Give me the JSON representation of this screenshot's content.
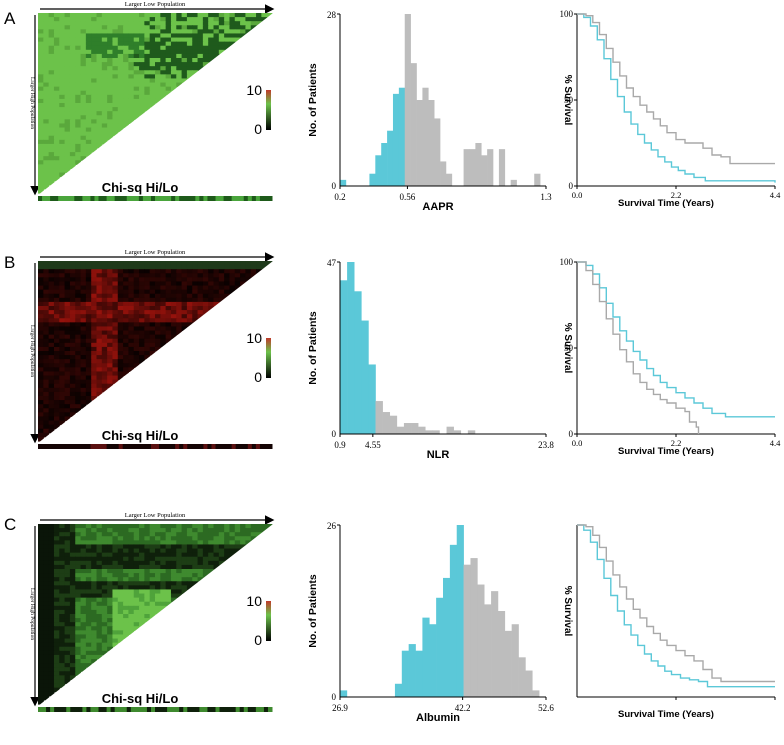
{
  "colors": {
    "cyan": "#5bc8d8",
    "gray": "#bdbdbd",
    "green": "#6cc24a",
    "black": "#000000"
  },
  "chart_data": [
    {
      "panel": "A",
      "heatmap": {
        "type": "heatmap",
        "top_label": "Larger Low Population",
        "side_label": "Larger High Population",
        "title": "Chi-sq Hi/Lo",
        "legend_max": "10",
        "legend_min": "0",
        "scheme": "green"
      },
      "histogram": {
        "type": "bar",
        "ylabel": "No. of Patients",
        "xlabel": "AAPR",
        "y_top_label": "28",
        "y_bottom_label": "0",
        "ylim": [
          0,
          28
        ],
        "xlim": [
          0.2,
          1.3
        ],
        "x_tick_labels": [
          "0.2",
          "0.56",
          "1.3"
        ],
        "x_tick_values": [
          0.2,
          0.56,
          1.3
        ],
        "cutoff": 0.56,
        "values": [
          1,
          0,
          0,
          0,
          0,
          2,
          5,
          7,
          9,
          15,
          16,
          28,
          20,
          14,
          16,
          14,
          11,
          4,
          2,
          0,
          0,
          6,
          6,
          7,
          5,
          6,
          0,
          6,
          0,
          1,
          0,
          0,
          0,
          2,
          0
        ]
      },
      "survival": {
        "type": "line",
        "ylabel": "% Survival",
        "xlabel": "Survival Time (Years)",
        "y_tick_labels": [
          "100",
          "50",
          "0"
        ],
        "x_tick_labels": [
          "0.0",
          "2.2",
          "4.4"
        ],
        "xlim": [
          0,
          4.4
        ],
        "ylim": [
          0,
          100
        ],
        "series": [
          {
            "name": "low",
            "color": "cyan",
            "points": [
              [
                0,
                100
              ],
              [
                0.15,
                98
              ],
              [
                0.3,
                93
              ],
              [
                0.45,
                85
              ],
              [
                0.6,
                74
              ],
              [
                0.75,
                62
              ],
              [
                0.9,
                52
              ],
              [
                1.05,
                43
              ],
              [
                1.2,
                36
              ],
              [
                1.35,
                30
              ],
              [
                1.5,
                25
              ],
              [
                1.65,
                21
              ],
              [
                1.8,
                17
              ],
              [
                1.95,
                14
              ],
              [
                2.1,
                11
              ],
              [
                2.25,
                9
              ],
              [
                2.4,
                7
              ],
              [
                2.6,
                5
              ],
              [
                2.85,
                3
              ],
              [
                3.3,
                3
              ],
              [
                4.4,
                2
              ]
            ]
          },
          {
            "name": "high",
            "color": "gray",
            "points": [
              [
                0,
                100
              ],
              [
                0.2,
                99
              ],
              [
                0.35,
                95
              ],
              [
                0.5,
                88
              ],
              [
                0.65,
                80
              ],
              [
                0.8,
                72
              ],
              [
                0.95,
                64
              ],
              [
                1.1,
                57
              ],
              [
                1.25,
                52
              ],
              [
                1.4,
                47
              ],
              [
                1.55,
                43
              ],
              [
                1.7,
                39
              ],
              [
                1.85,
                35
              ],
              [
                2.0,
                31
              ],
              [
                2.2,
                27
              ],
              [
                2.4,
                25
              ],
              [
                2.6,
                25
              ],
              [
                2.8,
                22
              ],
              [
                3.0,
                18
              ],
              [
                3.2,
                17
              ],
              [
                3.4,
                13
              ],
              [
                3.7,
                13
              ],
              [
                4.4,
                13
              ]
            ]
          }
        ]
      }
    },
    {
      "panel": "B",
      "heatmap": {
        "type": "heatmap",
        "top_label": "Larger Low Population",
        "side_label": "Larger High Population",
        "title": "Chi-sq Hi/Lo",
        "legend_max": "10",
        "legend_min": "0",
        "scheme": "dark"
      },
      "histogram": {
        "type": "bar",
        "ylabel": "No. of Patients",
        "xlabel": "NLR",
        "y_top_label": "47",
        "y_bottom_label": "0",
        "ylim": [
          0,
          47
        ],
        "xlim": [
          0.9,
          23.8
        ],
        "x_tick_labels": [
          "0.9",
          "4.55",
          "23.8"
        ],
        "x_tick_values": [
          0.9,
          4.55,
          23.8
        ],
        "cutoff": 4.55,
        "values": [
          42,
          47,
          39,
          31,
          19,
          9,
          6,
          5,
          2,
          3,
          3,
          2,
          1,
          1,
          0,
          2,
          1,
          0,
          1,
          0,
          0,
          0,
          0,
          0,
          0,
          0,
          0,
          0,
          0
        ]
      },
      "survival": {
        "type": "line",
        "ylabel": "% Survival",
        "xlabel": "Survival Time (Years)",
        "y_tick_labels": [
          "100",
          "50",
          "0"
        ],
        "x_tick_labels": [
          "0.0",
          "2.2",
          "4.4"
        ],
        "xlim": [
          0,
          4.4
        ],
        "ylim": [
          0,
          100
        ],
        "series": [
          {
            "name": "low",
            "color": "cyan",
            "points": [
              [
                0,
                100
              ],
              [
                0.2,
                98
              ],
              [
                0.35,
                93
              ],
              [
                0.5,
                85
              ],
              [
                0.65,
                76
              ],
              [
                0.8,
                68
              ],
              [
                0.95,
                60
              ],
              [
                1.1,
                54
              ],
              [
                1.25,
                48
              ],
              [
                1.4,
                43
              ],
              [
                1.55,
                38
              ],
              [
                1.7,
                34
              ],
              [
                1.85,
                30
              ],
              [
                2.0,
                27
              ],
              [
                2.2,
                24
              ],
              [
                2.4,
                21
              ],
              [
                2.6,
                18
              ],
              [
                2.8,
                15
              ],
              [
                3.0,
                12
              ],
              [
                3.3,
                10
              ],
              [
                4.4,
                10
              ]
            ]
          },
          {
            "name": "high",
            "color": "gray",
            "points": [
              [
                0,
                100
              ],
              [
                0.2,
                95
              ],
              [
                0.35,
                87
              ],
              [
                0.5,
                77
              ],
              [
                0.65,
                67
              ],
              [
                0.8,
                58
              ],
              [
                0.95,
                49
              ],
              [
                1.1,
                42
              ],
              [
                1.25,
                35
              ],
              [
                1.4,
                30
              ],
              [
                1.55,
                26
              ],
              [
                1.7,
                23
              ],
              [
                1.85,
                20
              ],
              [
                2.0,
                18
              ],
              [
                2.2,
                15
              ],
              [
                2.4,
                13
              ],
              [
                2.5,
                7
              ],
              [
                2.65,
                4
              ],
              [
                2.7,
                0
              ]
            ]
          }
        ]
      }
    },
    {
      "panel": "C",
      "heatmap": {
        "type": "heatmap",
        "top_label": "Larger Low Population",
        "side_label": "Larger High Population",
        "title": "Chi-sq Hi/Lo",
        "legend_max": "10",
        "legend_min": "0",
        "scheme": "green-dark"
      },
      "histogram": {
        "type": "bar",
        "ylabel": "No. of Patients",
        "xlabel": "Albumin",
        "y_top_label": "26",
        "y_bottom_label": "0",
        "ylim": [
          0,
          26
        ],
        "xlim": [
          26.9,
          52.6
        ],
        "x_tick_labels": [
          "26.9",
          "42.2",
          "52.6"
        ],
        "x_tick_values": [
          26.9,
          42.2,
          52.6
        ],
        "cutoff": 42.2,
        "values": [
          1,
          0,
          0,
          0,
          0,
          0,
          0,
          0,
          2,
          7,
          8,
          7,
          12,
          11,
          15,
          18,
          23,
          26,
          20,
          21,
          17,
          14,
          16,
          13,
          10,
          11,
          6,
          4,
          1,
          0
        ]
      },
      "survival": {
        "type": "line",
        "ylabel": "% Survival",
        "xlabel": "Survival Time (Years)",
        "y_tick_labels": [],
        "x_tick_labels": [],
        "xlim": [
          0,
          4.4
        ],
        "ylim": [
          0,
          100
        ],
        "series": [
          {
            "name": "low",
            "color": "cyan",
            "points": [
              [
                0,
                100
              ],
              [
                0.15,
                97
              ],
              [
                0.3,
                90
              ],
              [
                0.45,
                80
              ],
              [
                0.6,
                69
              ],
              [
                0.75,
                59
              ],
              [
                0.9,
                50
              ],
              [
                1.05,
                42
              ],
              [
                1.2,
                36
              ],
              [
                1.35,
                30
              ],
              [
                1.5,
                25
              ],
              [
                1.65,
                21
              ],
              [
                1.8,
                18
              ],
              [
                1.95,
                15
              ],
              [
                2.1,
                13
              ],
              [
                2.3,
                11
              ],
              [
                2.5,
                10
              ],
              [
                2.7,
                9
              ],
              [
                2.9,
                6
              ],
              [
                4.4,
                6
              ]
            ]
          },
          {
            "name": "high",
            "color": "gray",
            "points": [
              [
                0,
                100
              ],
              [
                0.2,
                99
              ],
              [
                0.35,
                94
              ],
              [
                0.5,
                87
              ],
              [
                0.65,
                79
              ],
              [
                0.8,
                71
              ],
              [
                0.95,
                64
              ],
              [
                1.1,
                57
              ],
              [
                1.25,
                51
              ],
              [
                1.4,
                46
              ],
              [
                1.55,
                41
              ],
              [
                1.7,
                37
              ],
              [
                1.85,
                33
              ],
              [
                2.0,
                30
              ],
              [
                2.2,
                27
              ],
              [
                2.4,
                24
              ],
              [
                2.6,
                21
              ],
              [
                2.8,
                16
              ],
              [
                3.0,
                11
              ],
              [
                3.2,
                9
              ],
              [
                4.4,
                9
              ]
            ]
          }
        ]
      }
    }
  ]
}
